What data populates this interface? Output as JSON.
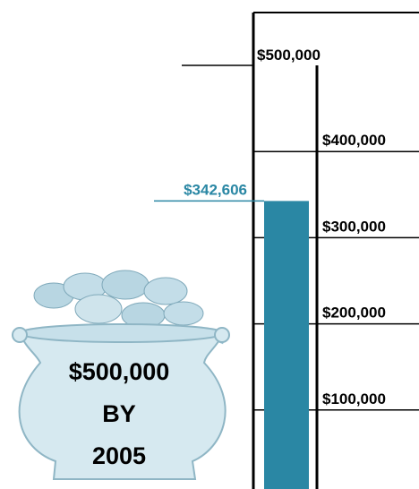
{
  "chart_data": {
    "type": "bar",
    "orientation": "thermometer",
    "values": [
      342606
    ],
    "value_labels": [
      "$342,606"
    ],
    "color": "#2a87a4",
    "ylim": [
      0,
      500000
    ],
    "yticks": [
      {
        "value": 100000,
        "label": "$100,000"
      },
      {
        "value": 200000,
        "label": "$200,000"
      },
      {
        "value": 300000,
        "label": "$300,000"
      },
      {
        "value": 400000,
        "label": "$400,000"
      },
      {
        "value": 500000,
        "label": "$500,000"
      }
    ],
    "annotation": [
      "$500,000",
      "BY",
      "2005"
    ]
  }
}
